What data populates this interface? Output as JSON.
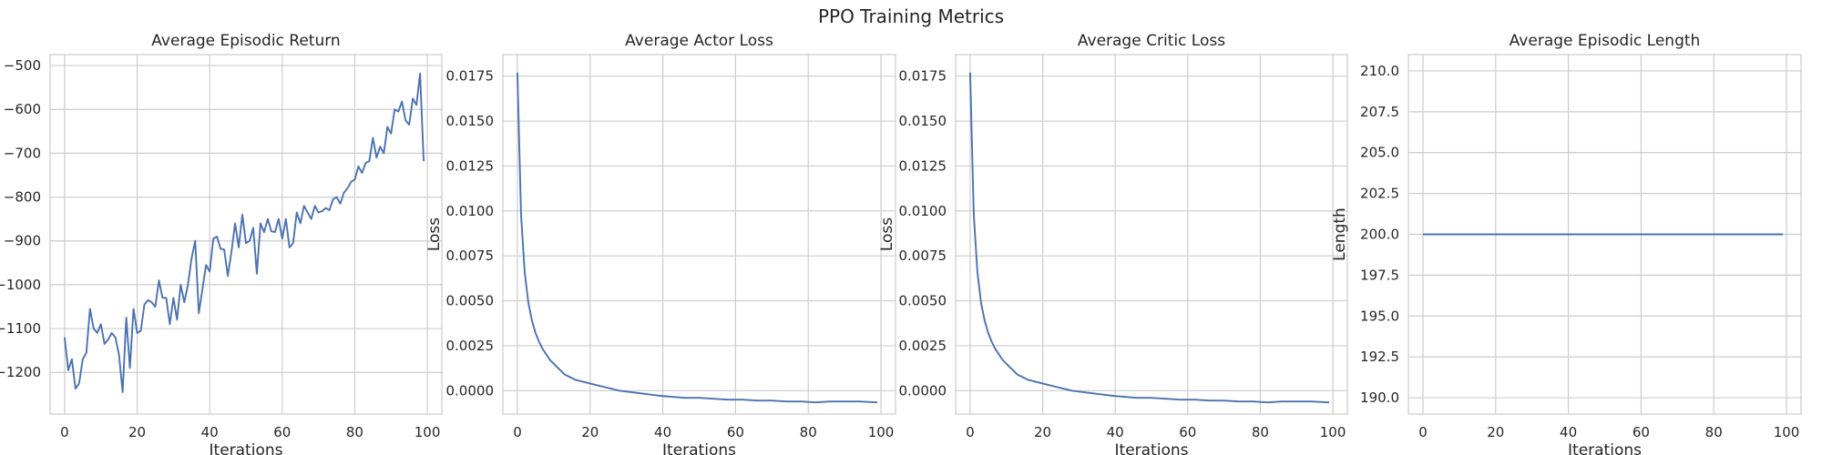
{
  "figure": {
    "title": "PPO Training Metrics",
    "line_color": "#4c72b0"
  },
  "chart_data": [
    {
      "type": "line",
      "title": "Average Episodic Return",
      "xlabel": "Iterations",
      "ylabel": "",
      "xlim": [
        -4,
        104
      ],
      "ylim": [
        -1295,
        -475
      ],
      "xticks": [
        0,
        20,
        40,
        60,
        80,
        100
      ],
      "xtick_labels": [
        "0",
        "20",
        "40",
        "60",
        "80",
        "100"
      ],
      "yticks": [
        -1200,
        -1100,
        -1000,
        -900,
        -800,
        -700,
        -600,
        -500
      ],
      "ytick_labels": [
        "−1200",
        "−1100",
        "−1000",
        "−900",
        "−800",
        "−700",
        "−600",
        "−500"
      ],
      "grid": true,
      "series": [
        {
          "x": [
            0,
            1,
            2,
            3,
            4,
            5,
            6,
            7,
            8,
            9,
            10,
            11,
            12,
            13,
            14,
            15,
            16,
            17,
            18,
            19,
            20,
            21,
            22,
            23,
            24,
            25,
            26,
            27,
            28,
            29,
            30,
            31,
            32,
            33,
            34,
            35,
            36,
            37,
            38,
            39,
            40,
            41,
            42,
            43,
            44,
            45,
            46,
            47,
            48,
            49,
            50,
            51,
            52,
            53,
            54,
            55,
            56,
            57,
            58,
            59,
            60,
            61,
            62,
            63,
            64,
            65,
            66,
            67,
            68,
            69,
            70,
            71,
            72,
            73,
            74,
            75,
            76,
            77,
            78,
            79,
            80,
            81,
            82,
            83,
            84,
            85,
            86,
            87,
            88,
            89,
            90,
            91,
            92,
            93,
            94,
            95,
            96,
            97,
            98,
            99
          ],
          "y": [
            -1120,
            -1195,
            -1170,
            -1237,
            -1225,
            -1170,
            -1155,
            -1055,
            -1100,
            -1110,
            -1090,
            -1135,
            -1125,
            -1110,
            -1120,
            -1160,
            -1245,
            -1075,
            -1190,
            -1055,
            -1110,
            -1105,
            -1045,
            -1035,
            -1040,
            -1050,
            -990,
            -1030,
            -1030,
            -1090,
            -1030,
            -1080,
            -1000,
            -1040,
            -1000,
            -940,
            -900,
            -1065,
            -1010,
            -955,
            -970,
            -895,
            -890,
            -918,
            -920,
            -980,
            -925,
            -860,
            -915,
            -840,
            -905,
            -900,
            -870,
            -975,
            -860,
            -880,
            -850,
            -878,
            -880,
            -850,
            -895,
            -850,
            -915,
            -905,
            -835,
            -860,
            -820,
            -835,
            -850,
            -820,
            -835,
            -832,
            -825,
            -830,
            -805,
            -800,
            -815,
            -790,
            -780,
            -765,
            -760,
            -730,
            -745,
            -722,
            -718,
            -665,
            -710,
            -685,
            -700,
            -640,
            -655,
            -600,
            -605,
            -582,
            -625,
            -635,
            -575,
            -590,
            -518,
            -718
          ]
        }
      ]
    },
    {
      "type": "line",
      "title": "Average Actor Loss",
      "xlabel": "Iterations",
      "ylabel": "Loss",
      "xlim": [
        -4,
        104
      ],
      "ylim": [
        -0.0013,
        0.0187
      ],
      "xticks": [
        0,
        20,
        40,
        60,
        80,
        100
      ],
      "xtick_labels": [
        "0",
        "20",
        "40",
        "60",
        "80",
        "100"
      ],
      "yticks": [
        0.0,
        0.0025,
        0.005,
        0.0075,
        0.01,
        0.0125,
        0.015,
        0.0175
      ],
      "ytick_labels": [
        "0.0000",
        "0.0025",
        "0.0050",
        "0.0075",
        "0.0100",
        "0.0125",
        "0.0150",
        "0.0175"
      ],
      "grid": true,
      "series": [
        {
          "x": [
            0,
            1,
            2,
            3,
            4,
            5,
            6,
            7,
            8,
            9,
            10,
            11,
            12,
            13,
            14,
            15,
            16,
            17,
            18,
            19,
            20,
            22,
            24,
            26,
            28,
            30,
            32,
            34,
            36,
            38,
            40,
            43,
            46,
            50,
            54,
            58,
            62,
            66,
            70,
            74,
            78,
            82,
            86,
            90,
            94,
            99
          ],
          "y": [
            0.0177,
            0.0098,
            0.0066,
            0.0049,
            0.0039,
            0.0032,
            0.0027,
            0.0023,
            0.002,
            0.0017,
            0.0015,
            0.0013,
            0.0011,
            0.0009,
            0.0008,
            0.0007,
            0.0006,
            0.00055,
            0.0005,
            0.00045,
            0.0004,
            0.0003,
            0.0002,
            0.0001,
            0.0,
            -5e-05,
            -0.0001,
            -0.00015,
            -0.0002,
            -0.00025,
            -0.0003,
            -0.00035,
            -0.0004,
            -0.0004,
            -0.00045,
            -0.0005,
            -0.0005,
            -0.00055,
            -0.00055,
            -0.0006,
            -0.0006,
            -0.00065,
            -0.0006,
            -0.0006,
            -0.0006,
            -0.00065
          ]
        }
      ]
    },
    {
      "type": "line",
      "title": "Average Critic Loss",
      "xlabel": "Iterations",
      "ylabel": "Loss",
      "xlim": [
        -4,
        104
      ],
      "ylim": [
        -0.0013,
        0.0187
      ],
      "xticks": [
        0,
        20,
        40,
        60,
        80,
        100
      ],
      "xtick_labels": [
        "0",
        "20",
        "40",
        "60",
        "80",
        "100"
      ],
      "yticks": [
        0.0,
        0.0025,
        0.005,
        0.0075,
        0.01,
        0.0125,
        0.015,
        0.0175
      ],
      "ytick_labels": [
        "0.0000",
        "0.0025",
        "0.0050",
        "0.0075",
        "0.0100",
        "0.0125",
        "0.0150",
        "0.0175"
      ],
      "grid": true,
      "series": [
        {
          "x": [
            0,
            1,
            2,
            3,
            4,
            5,
            6,
            7,
            8,
            9,
            10,
            11,
            12,
            13,
            14,
            15,
            16,
            17,
            18,
            19,
            20,
            22,
            24,
            26,
            28,
            30,
            32,
            34,
            36,
            38,
            40,
            43,
            46,
            50,
            54,
            58,
            62,
            66,
            70,
            74,
            78,
            82,
            86,
            90,
            94,
            99
          ],
          "y": [
            0.0177,
            0.0098,
            0.0066,
            0.0049,
            0.0039,
            0.0032,
            0.0027,
            0.0023,
            0.002,
            0.0017,
            0.0015,
            0.0013,
            0.0011,
            0.0009,
            0.0008,
            0.0007,
            0.0006,
            0.00055,
            0.0005,
            0.00045,
            0.0004,
            0.0003,
            0.0002,
            0.0001,
            0.0,
            -5e-05,
            -0.0001,
            -0.00015,
            -0.0002,
            -0.00025,
            -0.0003,
            -0.00035,
            -0.0004,
            -0.0004,
            -0.00045,
            -0.0005,
            -0.0005,
            -0.00055,
            -0.00055,
            -0.0006,
            -0.0006,
            -0.00065,
            -0.0006,
            -0.0006,
            -0.0006,
            -0.00065
          ]
        }
      ]
    },
    {
      "type": "line",
      "title": "Average Episodic Length",
      "xlabel": "Iterations",
      "ylabel": "Length",
      "xlim": [
        -4,
        104
      ],
      "ylim": [
        189,
        211
      ],
      "xticks": [
        0,
        20,
        40,
        60,
        80,
        100
      ],
      "xtick_labels": [
        "0",
        "20",
        "40",
        "60",
        "80",
        "100"
      ],
      "yticks": [
        190,
        192.5,
        195,
        197.5,
        200,
        202.5,
        205,
        207.5,
        210
      ],
      "ytick_labels": [
        "190.0",
        "192.5",
        "195.0",
        "197.5",
        "200.0",
        "202.5",
        "205.0",
        "207.5",
        "210.0"
      ],
      "grid": true,
      "series": [
        {
          "x": [
            0,
            99
          ],
          "y": [
            200,
            200
          ]
        }
      ]
    }
  ]
}
